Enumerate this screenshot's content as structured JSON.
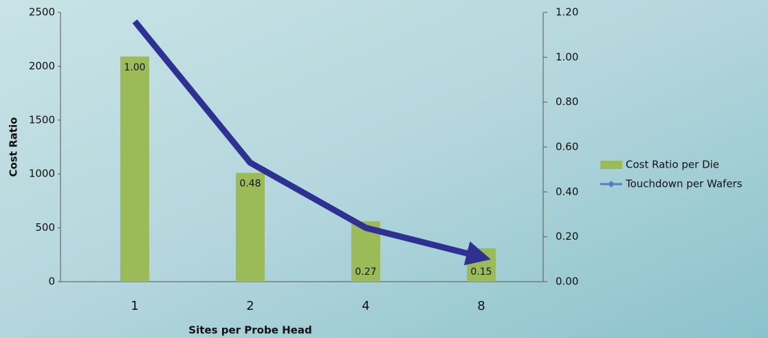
{
  "chart_data": {
    "type": "bar_line",
    "x_label": "Sites per Probe Head",
    "y_label": "Cost Ratio",
    "categories": [
      "1",
      "2",
      "4",
      "8"
    ],
    "series": [
      {
        "name": "Cost Ratio per Die",
        "type": "bar",
        "color": "#9bbb59",
        "values": [
          2090,
          1010,
          560,
          310
        ]
      },
      {
        "name": "Touchdown per Wafers",
        "type": "line",
        "axis": "y2",
        "color": "#2e3192",
        "marker_color": "#4f81bd",
        "values": [
          1.16,
          0.53,
          0.24,
          0.11
        ]
      }
    ],
    "annotations": [
      "1.00",
      "0.48",
      "0.27",
      "0.15"
    ],
    "ylim": [
      0,
      2500
    ],
    "yticks": [
      0,
      500,
      1000,
      1500,
      2000,
      2500
    ],
    "y2lim": [
      0,
      1.2
    ],
    "y2ticks": [
      {
        "value": 0,
        "label": "0.00"
      },
      {
        "value": 0.2,
        "label": "0.20"
      },
      {
        "value": 0.4,
        "label": "0.40"
      },
      {
        "value": 0.6,
        "label": "0.60"
      },
      {
        "value": 0.8,
        "label": "0.80"
      },
      {
        "value": 1.0,
        "label": "1.00"
      },
      {
        "value": 1.2,
        "label": "1.20"
      }
    ]
  }
}
